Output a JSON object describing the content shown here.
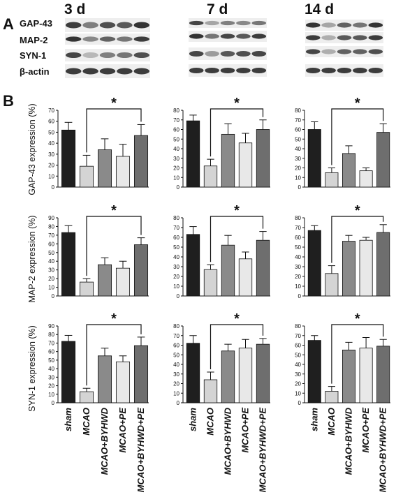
{
  "panel_labels": {
    "a": "A",
    "b": "B"
  },
  "time_points": [
    "3 d",
    "7 d",
    "14 d"
  ],
  "blot_labels": [
    "GAP-43",
    "MAP-2",
    "SYN-1",
    "β-actin"
  ],
  "groups": [
    "sham",
    "MCAO",
    "MCAO+BYHWD",
    "MCAO+PE",
    "MCAO+BYHWD+PE"
  ],
  "colors": {
    "sham": "#1f1f1f",
    "MCAO": "#d4d4d4",
    "MCAO+BYHWD": "#8a8a8a",
    "MCAO+PE": "#e8e8e8",
    "MCAO+BYHWD+PE": "#6e6e6e"
  },
  "significance_marker": "*",
  "chart_data": [
    {
      "type": "bar",
      "ylabel": "GAP-43 expression (%)",
      "time": "3 d",
      "ylim": [
        0,
        70
      ],
      "yticks": [
        0,
        10,
        20,
        30,
        40,
        50,
        60,
        70
      ],
      "categories": [
        "sham",
        "MCAO",
        "MCAO+BYHWD",
        "MCAO+PE",
        "MCAO+BYHWD+PE"
      ],
      "values": [
        52,
        19,
        34,
        28,
        47
      ],
      "errors": [
        7,
        10,
        10,
        11,
        10
      ],
      "significance": {
        "from": "MCAO",
        "to": "MCAO+BYHWD+PE",
        "label": "*"
      }
    },
    {
      "type": "bar",
      "ylabel": "",
      "time": "7 d",
      "ylim": [
        0,
        80
      ],
      "yticks": [
        0,
        10,
        20,
        30,
        40,
        50,
        60,
        70,
        80
      ],
      "categories": [
        "sham",
        "MCAO",
        "MCAO+BYHWD",
        "MCAO+PE",
        "MCAO+BYHWD+PE"
      ],
      "values": [
        69,
        22,
        55,
        46,
        60
      ],
      "errors": [
        6,
        7,
        11,
        10,
        10
      ],
      "significance": {
        "from": "MCAO",
        "to": "MCAO+BYHWD+PE",
        "label": "*"
      }
    },
    {
      "type": "bar",
      "ylabel": "",
      "time": "14 d",
      "ylim": [
        0,
        80
      ],
      "yticks": [
        0,
        10,
        20,
        30,
        40,
        50,
        60,
        70,
        80
      ],
      "categories": [
        "sham",
        "MCAO",
        "MCAO+BYHWD",
        "MCAO+PE",
        "MCAO+BYHWD+PE"
      ],
      "values": [
        60,
        15,
        35,
        17,
        57
      ],
      "errors": [
        8,
        5,
        8,
        3,
        9
      ],
      "significance": {
        "from": "MCAO",
        "to": "MCAO+BYHWD+PE",
        "label": "*"
      }
    },
    {
      "type": "bar",
      "ylabel": "MAP-2 expression (%)",
      "time": "3 d",
      "ylim": [
        0,
        90
      ],
      "yticks": [
        0,
        10,
        20,
        30,
        40,
        50,
        60,
        70,
        80,
        90
      ],
      "categories": [
        "sham",
        "MCAO",
        "MCAO+BYHWD",
        "MCAO+PE",
        "MCAO+BYHWD+PE"
      ],
      "values": [
        73,
        16,
        36,
        32,
        59
      ],
      "errors": [
        8,
        4,
        8,
        8,
        8
      ],
      "significance": {
        "from": "MCAO",
        "to": "MCAO+BYHWD+PE",
        "label": "*"
      }
    },
    {
      "type": "bar",
      "ylabel": "",
      "time": "7 d",
      "ylim": [
        0,
        80
      ],
      "yticks": [
        0,
        10,
        20,
        30,
        40,
        50,
        60,
        70,
        80
      ],
      "categories": [
        "sham",
        "MCAO",
        "MCAO+BYHWD",
        "MCAO+PE",
        "MCAO+BYHWD+PE"
      ],
      "values": [
        63,
        27,
        52,
        38,
        57
      ],
      "errors": [
        8,
        5,
        10,
        7,
        9
      ],
      "significance": {
        "from": "MCAO",
        "to": "MCAO+BYHWD+PE",
        "label": "*"
      }
    },
    {
      "type": "bar",
      "ylabel": "",
      "time": "14 d",
      "ylim": [
        0,
        80
      ],
      "yticks": [
        0,
        10,
        20,
        30,
        40,
        50,
        60,
        70,
        80
      ],
      "categories": [
        "sham",
        "MCAO",
        "MCAO+BYHWD",
        "MCAO+PE",
        "MCAO+BYHWD+PE"
      ],
      "values": [
        67,
        23,
        56,
        57,
        65
      ],
      "errors": [
        5,
        8,
        6,
        3,
        8
      ],
      "significance": {
        "from": "MCAO",
        "to": "MCAO+BYHWD+PE",
        "label": "*"
      }
    },
    {
      "type": "bar",
      "ylabel": "SYN-1 expression (%)",
      "time": "3 d",
      "ylim": [
        0,
        90
      ],
      "yticks": [
        0,
        10,
        20,
        30,
        40,
        50,
        60,
        70,
        80,
        90
      ],
      "categories": [
        "sham",
        "MCAO",
        "MCAO+BYHWD",
        "MCAO+PE",
        "MCAO+BYHWD+PE"
      ],
      "values": [
        72,
        13,
        55,
        48,
        67
      ],
      "errors": [
        7,
        4,
        9,
        7,
        10
      ],
      "significance": {
        "from": "MCAO",
        "to": "MCAO+BYHWD+PE",
        "label": "*"
      }
    },
    {
      "type": "bar",
      "ylabel": "",
      "time": "7 d",
      "ylim": [
        0,
        80
      ],
      "yticks": [
        0,
        10,
        20,
        30,
        40,
        50,
        60,
        70,
        80
      ],
      "categories": [
        "sham",
        "MCAO",
        "MCAO+BYHWD",
        "MCAO+PE",
        "MCAO+BYHWD+PE"
      ],
      "values": [
        62,
        24,
        54,
        57,
        61
      ],
      "errors": [
        8,
        8,
        7,
        9,
        6
      ],
      "significance": {
        "from": "MCAO",
        "to": "MCAO+BYHWD+PE",
        "label": "*"
      }
    },
    {
      "type": "bar",
      "ylabel": "",
      "time": "14 d",
      "ylim": [
        0,
        80
      ],
      "yticks": [
        0,
        10,
        20,
        30,
        40,
        50,
        60,
        70,
        80
      ],
      "categories": [
        "sham",
        "MCAO",
        "MCAO+BYHWD",
        "MCAO+PE",
        "MCAO+BYHWD+PE"
      ],
      "values": [
        65,
        12,
        55,
        57,
        59
      ],
      "errors": [
        5,
        5,
        8,
        11,
        7
      ],
      "significance": {
        "from": "MCAO",
        "to": "MCAO+BYHWD+PE",
        "label": "*"
      }
    }
  ]
}
